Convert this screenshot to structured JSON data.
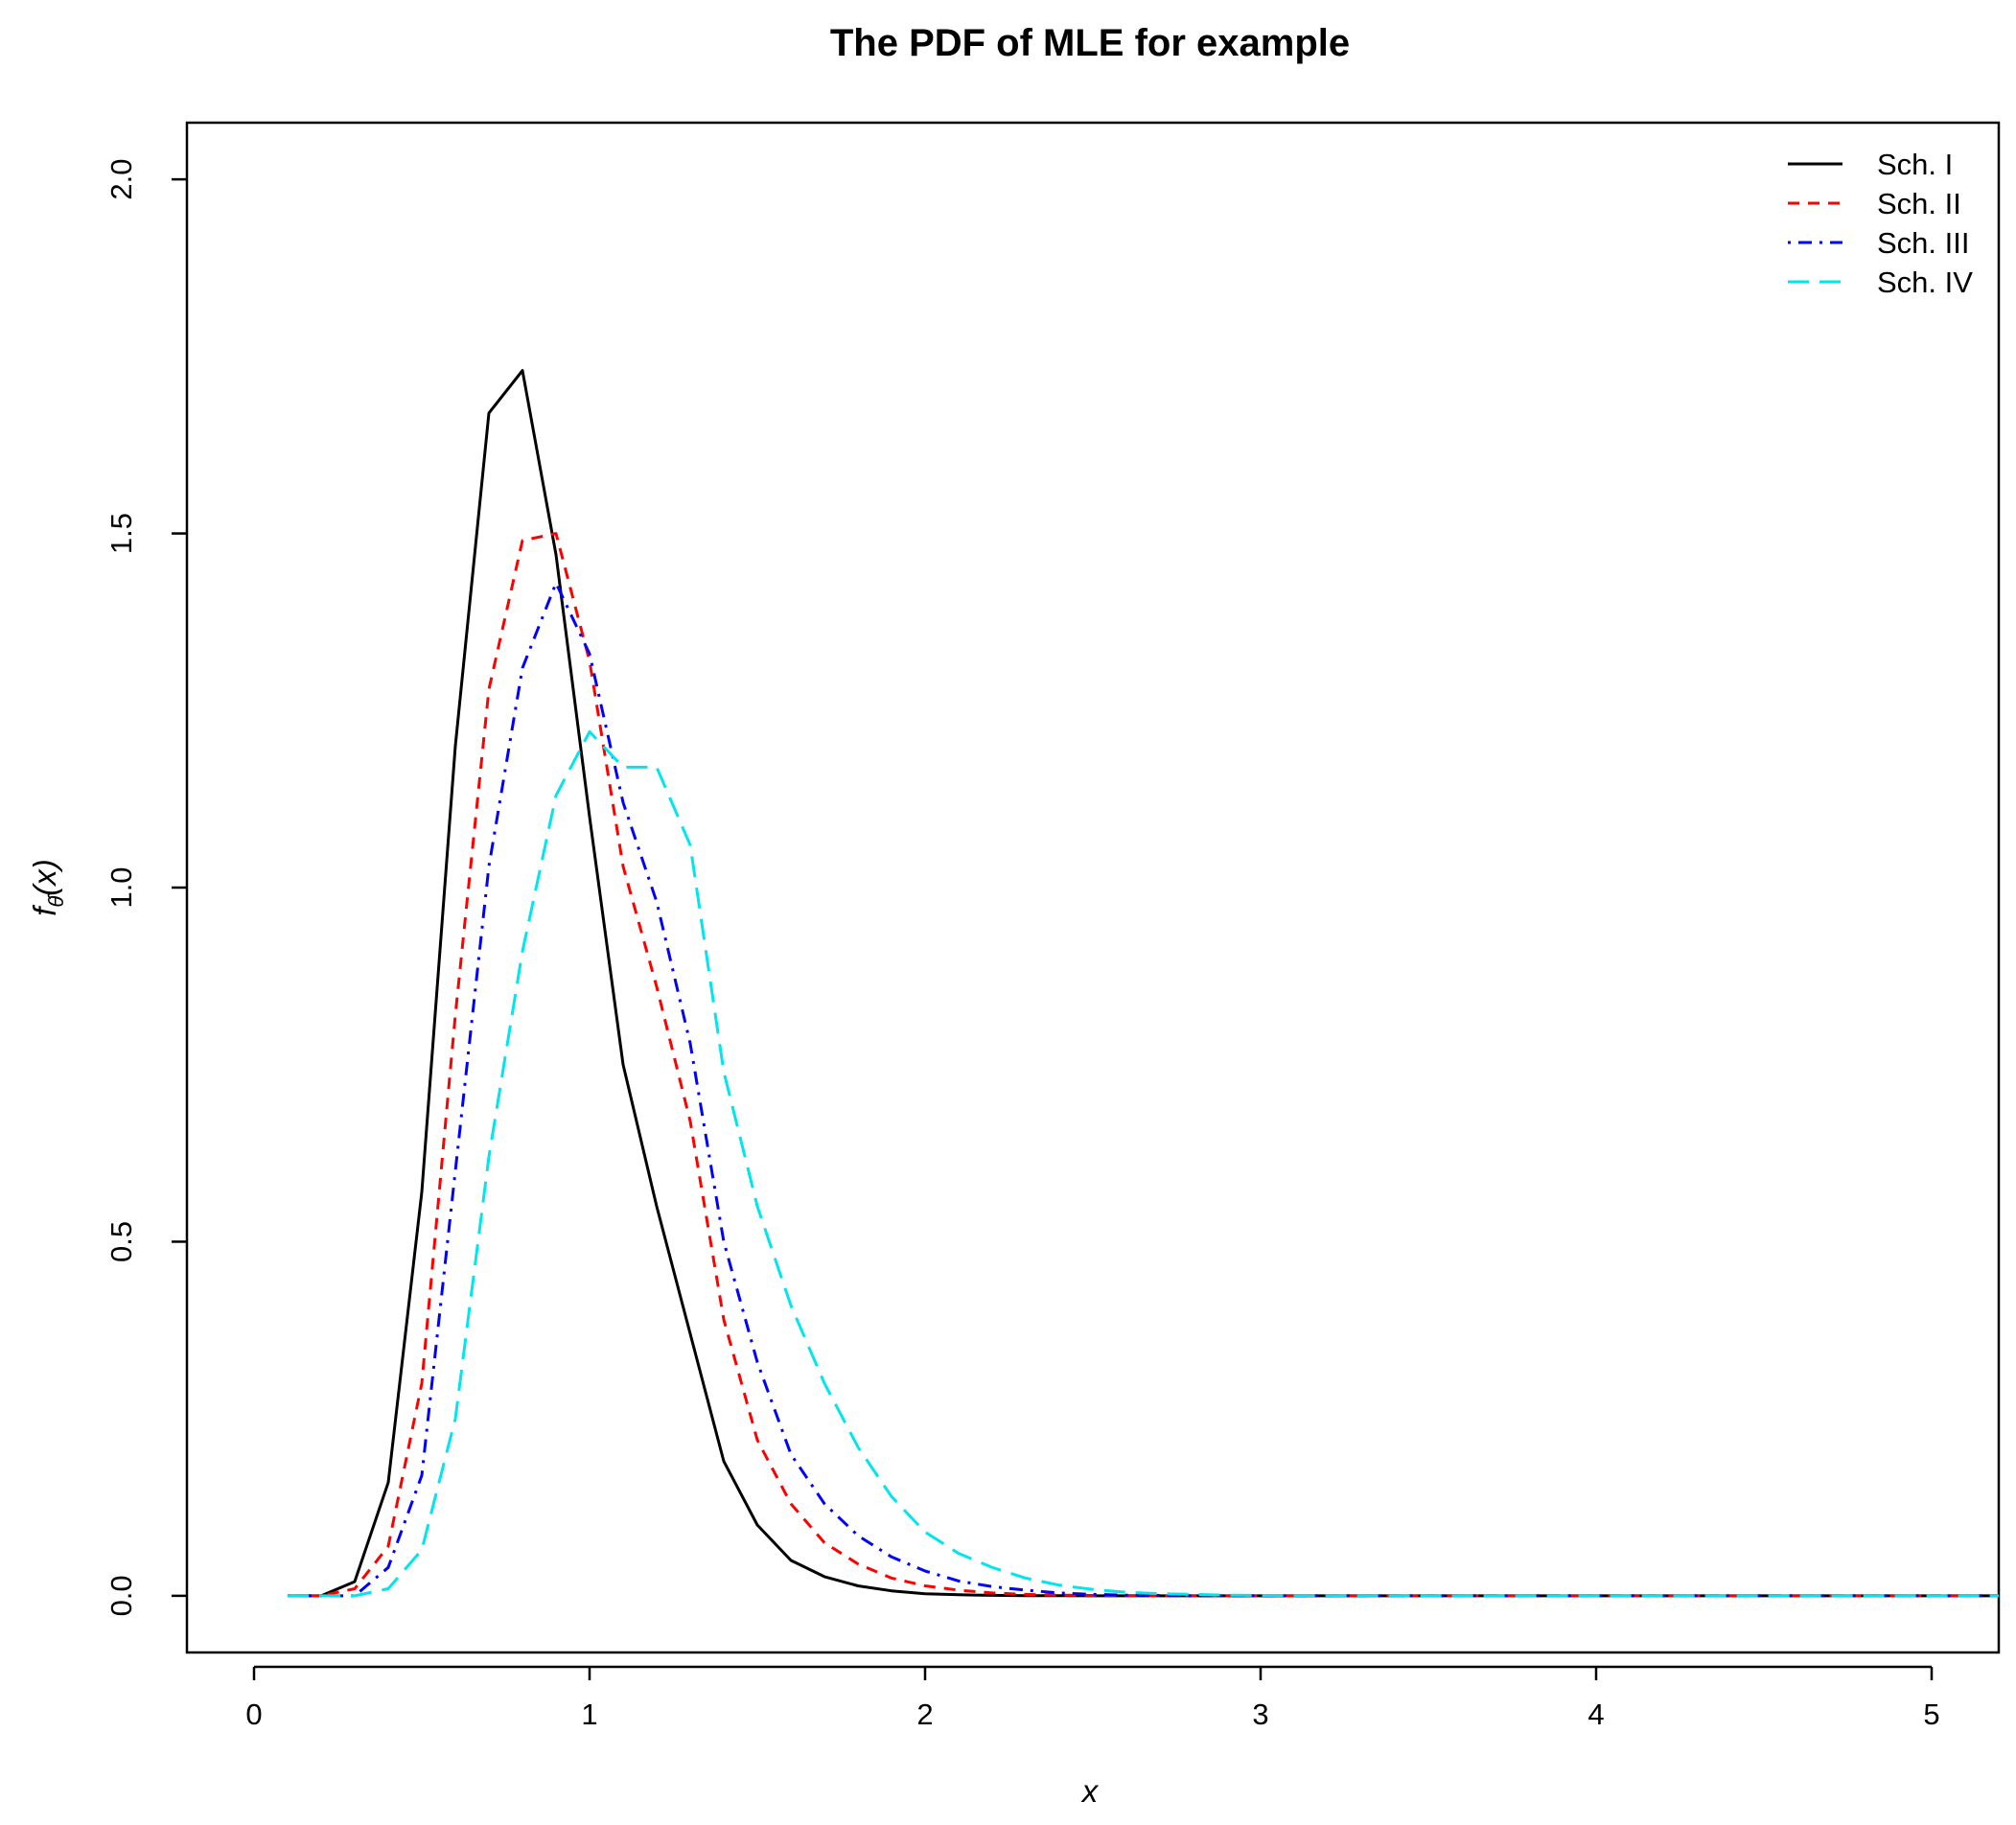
{
  "chart_data": {
    "type": "line",
    "title": "The PDF of MLE for example",
    "xlabel": "x",
    "ylabel": "f_θ̂(x)",
    "ylabel_parts": {
      "main": "f",
      "sub": "θ̂",
      "arg": "(x)"
    },
    "xlim": [
      -0.2,
      5.2
    ],
    "ylim": [
      -0.08,
      2.08
    ],
    "x_ticks": [
      0,
      1,
      2,
      3,
      4,
      5
    ],
    "x_tick_labels": [
      "0",
      "1",
      "2",
      "3",
      "4",
      "5"
    ],
    "y_ticks": [
      0.0,
      0.5,
      1.0,
      1.5,
      2.0
    ],
    "y_tick_labels": [
      "0.0",
      "0.5",
      "1.0",
      "1.5",
      "2.0"
    ],
    "grid": false,
    "legend_position": "top-right",
    "x": [
      0.1,
      0.2,
      0.3,
      0.4,
      0.5,
      0.6,
      0.7,
      0.8,
      0.9,
      1.0,
      1.1,
      1.2,
      1.3,
      1.4,
      1.5,
      1.6,
      1.7,
      1.8,
      1.9,
      2.0,
      2.1,
      2.2,
      2.3,
      2.4,
      2.5,
      2.6,
      2.7,
      2.8,
      2.9,
      3.0,
      3.5,
      4.0,
      4.5,
      5.0,
      5.2
    ],
    "series": [
      {
        "name": "Sch. I",
        "color": "#000000",
        "dash": "solid",
        "values": [
          0.0,
          0.0,
          0.02,
          0.16,
          0.57,
          1.2,
          1.67,
          1.73,
          1.47,
          1.1,
          0.75,
          0.55,
          0.37,
          0.19,
          0.1,
          0.05,
          0.027,
          0.014,
          0.007,
          0.003,
          0.0015,
          0.0007,
          0.0003,
          0.0001,
          0.0,
          0.0,
          0.0,
          0.0,
          0.0,
          0.0,
          0.0,
          0.0,
          0.0,
          0.0,
          0.0
        ]
      },
      {
        "name": "Sch. II",
        "color": "#ff0000",
        "dash": "dashed",
        "values": [
          0.0,
          0.0,
          0.01,
          0.07,
          0.3,
          0.82,
          1.28,
          1.49,
          1.5,
          1.32,
          1.03,
          0.86,
          0.67,
          0.39,
          0.22,
          0.13,
          0.075,
          0.045,
          0.025,
          0.014,
          0.008,
          0.004,
          0.002,
          0.001,
          0.0005,
          0.0002,
          0.0,
          0.0,
          0.0,
          0.0,
          0.0,
          0.0,
          0.0,
          0.0,
          0.0
        ]
      },
      {
        "name": "Sch. III",
        "color": "#0000ff",
        "dash": "dotdash",
        "values": [
          0.0,
          0.0,
          0.0,
          0.04,
          0.17,
          0.6,
          1.03,
          1.31,
          1.43,
          1.33,
          1.12,
          0.98,
          0.78,
          0.5,
          0.33,
          0.2,
          0.13,
          0.085,
          0.055,
          0.035,
          0.021,
          0.013,
          0.008,
          0.004,
          0.002,
          0.001,
          0.0005,
          0.0,
          0.0,
          0.0,
          0.0,
          0.0,
          0.0,
          0.0,
          0.0
        ]
      },
      {
        "name": "Sch. IV",
        "color": "#00e5ee",
        "dash": "longdash",
        "values": [
          0.0,
          0.0,
          0.0,
          0.01,
          0.065,
          0.25,
          0.62,
          0.91,
          1.13,
          1.22,
          1.17,
          1.17,
          1.06,
          0.74,
          0.55,
          0.41,
          0.3,
          0.21,
          0.14,
          0.09,
          0.06,
          0.04,
          0.025,
          0.015,
          0.009,
          0.005,
          0.003,
          0.002,
          0.001,
          0.0005,
          0.0,
          0.0,
          0.0,
          0.0,
          0.0
        ]
      }
    ]
  }
}
